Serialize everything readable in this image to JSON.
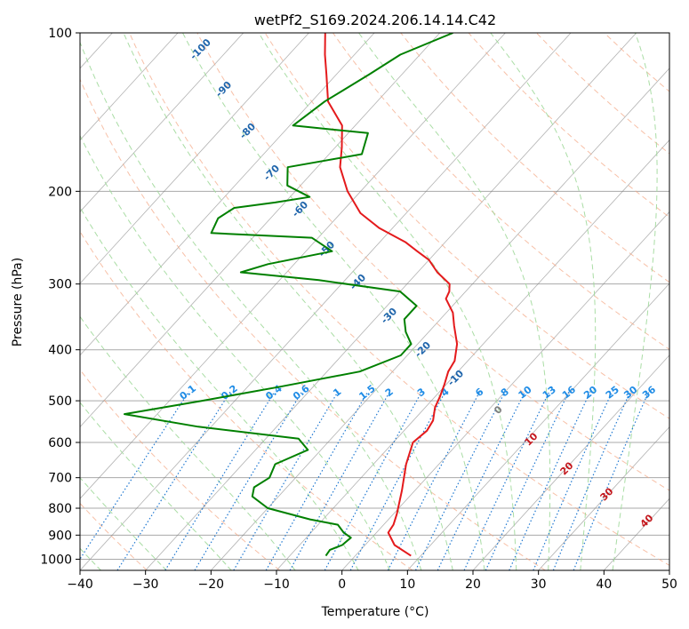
{
  "chart_data": {
    "type": "line",
    "title": "wetPf2_S169.2024.206.14.14.C42",
    "xlabel": "Temperature (°C)",
    "ylabel": "Pressure (hPa)",
    "xlim": [
      -40,
      50
    ],
    "ylim": [
      1050,
      100
    ],
    "yscale": "log",
    "x_ticks": [
      "−40",
      "−30",
      "−20",
      "−10",
      "0",
      "10",
      "20",
      "30",
      "40",
      "50"
    ],
    "x_tick_values": [
      -40,
      -30,
      -20,
      -10,
      0,
      10,
      20,
      30,
      40,
      50
    ],
    "y_ticks": [
      "100",
      "200",
      "300",
      "400",
      "500",
      "600",
      "700",
      "800",
      "900",
      "1000"
    ],
    "y_tick_values": [
      100,
      200,
      300,
      400,
      500,
      600,
      700,
      800,
      900,
      1000
    ],
    "grid": true,
    "skew": true,
    "series": [
      {
        "name": "",
        "role": "temperature",
        "color": "#e41a1c",
        "points": [
          [
            8.5,
            985
          ],
          [
            4.5,
            940
          ],
          [
            1.8,
            890
          ],
          [
            1.5,
            860
          ],
          [
            0.5,
            820
          ],
          [
            -2,
            740
          ],
          [
            -5,
            660
          ],
          [
            -7,
            600
          ],
          [
            -6.5,
            570
          ],
          [
            -7,
            545
          ],
          [
            -8.5,
            515
          ],
          [
            -9.3,
            490
          ],
          [
            -10.3,
            465
          ],
          [
            -11.5,
            440
          ],
          [
            -12,
            420
          ],
          [
            -14,
            390
          ],
          [
            -17,
            360
          ],
          [
            -19,
            340
          ],
          [
            -22,
            320
          ],
          [
            -22.5,
            310
          ],
          [
            -23.5,
            300
          ],
          [
            -27,
            285
          ],
          [
            -30,
            270
          ],
          [
            -33,
            260
          ],
          [
            -36,
            250
          ],
          [
            -42,
            235
          ],
          [
            -47,
            220
          ],
          [
            -52,
            200
          ],
          [
            -56.5,
            180
          ],
          [
            -59,
            165
          ],
          [
            -62,
            150
          ],
          [
            -67.5,
            135
          ],
          [
            -71.5,
            120
          ],
          [
            -74.5,
            110
          ],
          [
            -77.5,
            100
          ]
        ]
      },
      {
        "name": "",
        "role": "dewpoint",
        "color": "#008000",
        "points": [
          [
            -4.5,
            985
          ],
          [
            -4.7,
            960
          ],
          [
            -3.5,
            940
          ],
          [
            -3.2,
            910
          ],
          [
            -5,
            890
          ],
          [
            -7,
            860
          ],
          [
            -12,
            840
          ],
          [
            -20,
            800
          ],
          [
            -24,
            760
          ],
          [
            -25,
            730
          ],
          [
            -24,
            700
          ],
          [
            -25,
            660
          ],
          [
            -22,
            620
          ],
          [
            -25,
            590
          ],
          [
            -42,
            560
          ],
          [
            -55,
            530
          ],
          [
            -45,
            500
          ],
          [
            -35,
            470
          ],
          [
            -25,
            440
          ],
          [
            -21,
            410
          ],
          [
            -21,
            390
          ],
          [
            -23.5,
            370
          ],
          [
            -25.5,
            350
          ],
          [
            -25.5,
            330
          ],
          [
            -30,
            310
          ],
          [
            -44,
            295
          ],
          [
            -57,
            285
          ],
          [
            -54,
            275
          ],
          [
            -46,
            260
          ],
          [
            -51,
            245
          ],
          [
            -67,
            240
          ],
          [
            -68,
            225
          ],
          [
            -67,
            215
          ],
          [
            -61.5,
            210
          ],
          [
            -57,
            205
          ],
          [
            -62,
            195
          ],
          [
            -64.5,
            180
          ],
          [
            -55,
            170
          ],
          [
            -57,
            155
          ],
          [
            -69.5,
            150
          ],
          [
            -68,
            135
          ],
          [
            -65,
            120
          ],
          [
            -63,
            110
          ],
          [
            -58,
            100
          ]
        ]
      }
    ],
    "dry_adiabat_theta_K": [
      200,
      220,
      240,
      260,
      280,
      300,
      320,
      340,
      360,
      380,
      400,
      420,
      440,
      460,
      480,
      500,
      520,
      540,
      560,
      580
    ],
    "moist_adiabat_values": [
      -100,
      -90,
      -80,
      -70,
      -60,
      -50,
      -40,
      -30,
      -20,
      -10,
      0,
      10,
      20,
      30,
      40
    ],
    "moist_adiabat_labels": [
      "-100",
      "-90",
      "-80",
      "-70",
      "-60",
      "-50",
      "-40",
      "-30",
      "-20",
      "-10",
      "0",
      "10",
      "20",
      "30",
      "40"
    ],
    "mixing_ratio_values": [
      0.1,
      0.2,
      0.4,
      0.6,
      1,
      1.5,
      2,
      3,
      4,
      6,
      8,
      10,
      13,
      16,
      20,
      25,
      30,
      36
    ],
    "mixing_ratio_labels": [
      "0.1",
      "0.2",
      "0.4",
      "0.6",
      "1",
      "1.5",
      "2",
      "3",
      "4",
      "6",
      "8",
      "10",
      "13",
      "16",
      "20",
      "25",
      "30",
      "36"
    ],
    "colors": {
      "isotherm": "#7f7f7f",
      "isobar": "#a9a9a9",
      "dry_adiabat": "#f4a582",
      "moist_adiabat": "#a1d99b",
      "mixing_ratio": "#1f78d1",
      "moist_label_cold": "#2166ac",
      "moist_label_zero": "#7f7f7f",
      "moist_label_warm": "#c4161c",
      "mixing_label": "#1f8ce6"
    }
  }
}
